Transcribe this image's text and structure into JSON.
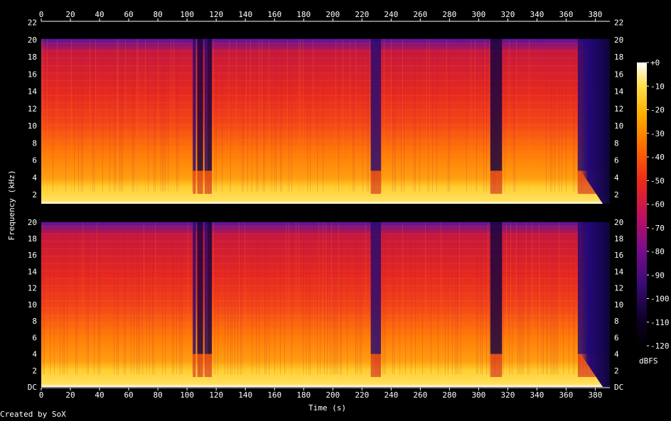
{
  "chart_data": {
    "type": "heatmap",
    "title": "",
    "xlabel": "Time (s)",
    "ylabel": "Frequency (kHz)",
    "colorbar_label": "dBFS",
    "x_ticks": [
      "0",
      "20",
      "40",
      "60",
      "80",
      "100",
      "120",
      "140",
      "160",
      "180",
      "200",
      "220",
      "240",
      "260",
      "280",
      "300",
      "320",
      "340",
      "360",
      "380"
    ],
    "x_range": [
      0,
      390
    ],
    "y_ticks_top": [
      "2",
      "4",
      "6",
      "8",
      "10",
      "12",
      "14",
      "16",
      "18",
      "20",
      "22"
    ],
    "y_ticks_bottom": [
      "DC",
      "2",
      "4",
      "6",
      "8",
      "10",
      "12",
      "14",
      "16",
      "18",
      "20"
    ],
    "y_range_khz": [
      0,
      22.05
    ],
    "colorbar_ticks": [
      "+0",
      "-10",
      "-20",
      "-30",
      "-40",
      "-50",
      "-60",
      "-70",
      "-80",
      "-90",
      "-100",
      "-110",
      "-120"
    ],
    "colorbar_range_dbfs": [
      -120,
      0
    ],
    "colormap": [
      "#000000",
      "#160030",
      "#3a0a78",
      "#7a0c8c",
      "#c01060",
      "#ea2a18",
      "#ff6a00",
      "#ffb000",
      "#ffe050",
      "#ffffff"
    ],
    "channels": [
      {
        "name": "",
        "content_cutoff_khz": 20,
        "dropouts_s": [
          [
            104,
            106
          ],
          [
            107,
            111
          ],
          [
            112,
            114
          ],
          [
            114,
            117
          ],
          [
            226,
            233
          ],
          [
            308,
            316
          ],
          [
            368,
            390
          ]
        ],
        "fadeout_start_s": 370
      },
      {
        "name": "",
        "content_cutoff_khz": 20,
        "dropouts_s": [
          [
            104,
            106
          ],
          [
            107,
            111
          ],
          [
            112,
            114
          ],
          [
            114,
            117
          ],
          [
            226,
            233
          ],
          [
            308,
            316
          ],
          [
            368,
            390
          ]
        ],
        "fadeout_start_s": 370
      }
    ]
  },
  "footer": {
    "credit": "Created by SoX"
  }
}
